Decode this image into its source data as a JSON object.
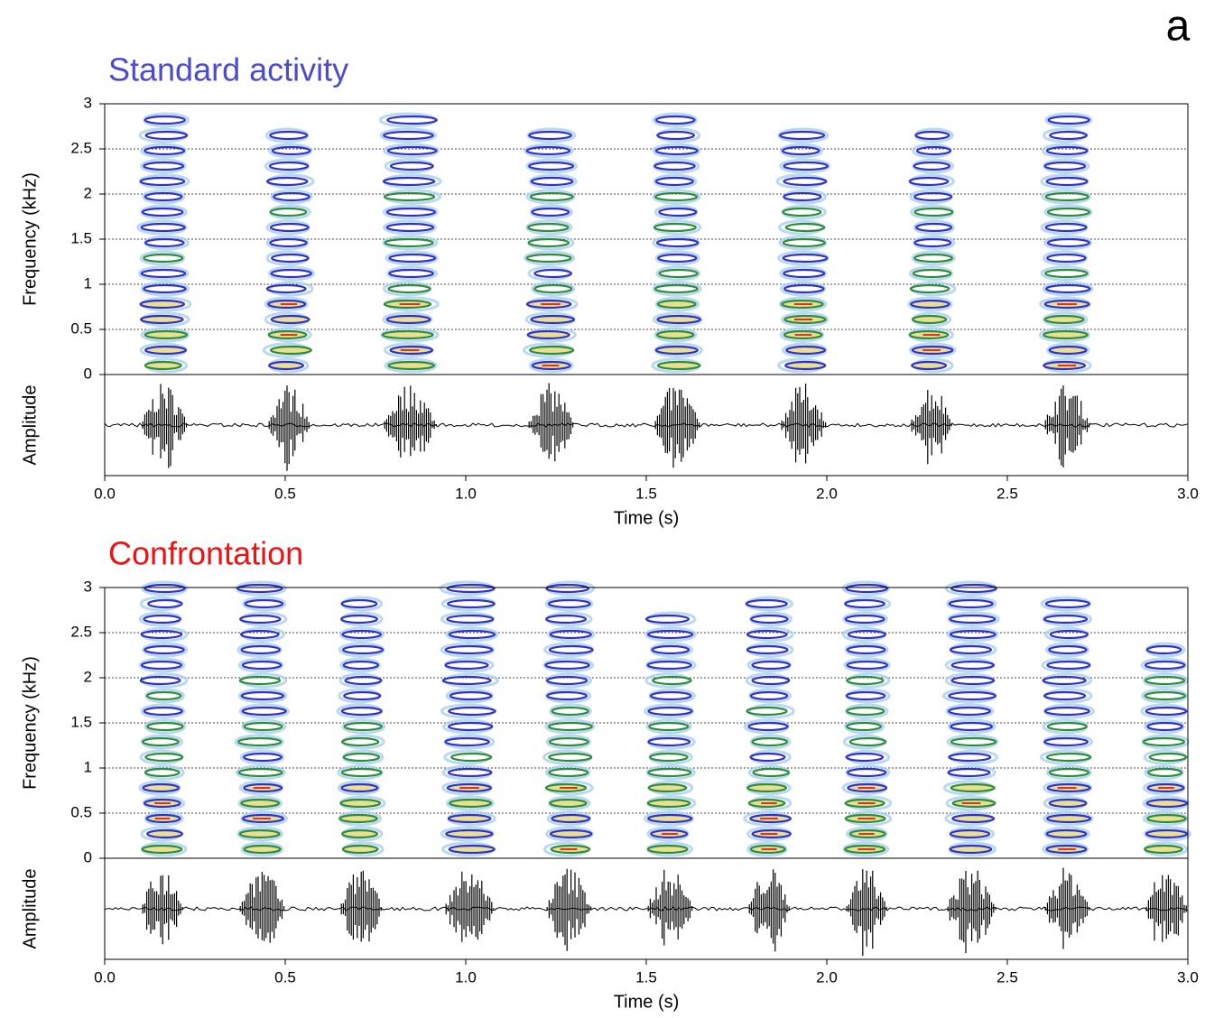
{
  "panel_label": "a",
  "chart_data": [
    {
      "type": "spectrogram",
      "title": "Standard activity",
      "title_color": "#4b4bd0",
      "xlabel": "Time (s)",
      "ylabel": "Frequency (kHz)",
      "amplitude_label": "Amplitude",
      "xlim": [
        0,
        3
      ],
      "xticks": [
        {
          "value": 0,
          "label": "0.0"
        },
        0.5,
        {
          "value": 1,
          "label": "1.0"
        },
        1.5,
        {
          "value": 2,
          "label": "2.0"
        },
        2.5,
        {
          "value": 3,
          "label": "3.0"
        }
      ],
      "ylim": [
        0,
        3
      ],
      "yticks": [
        0,
        0.5,
        1,
        1.5,
        2,
        2.5,
        3
      ],
      "grid": true,
      "onsets": [
        0.1,
        0.45,
        0.77,
        1.17,
        1.52,
        1.87,
        2.23,
        2.6
      ],
      "offsets": [
        0.23,
        0.57,
        0.92,
        1.3,
        1.65,
        2.0,
        2.35,
        2.73
      ],
      "max_freq": [
        2.85,
        2.75,
        2.85,
        2.75,
        2.85,
        2.75,
        2.8,
        2.85
      ]
    },
    {
      "type": "spectrogram",
      "title": "Confrontation",
      "title_color": "#ee1111",
      "xlabel": "Time (s)",
      "ylabel": "Frequency (kHz)",
      "amplitude_label": "Amplitude",
      "xlim": [
        0,
        3
      ],
      "xticks": [
        {
          "value": 0,
          "label": "0.0"
        },
        0.5,
        {
          "value": 1,
          "label": "1.0"
        },
        1.5,
        {
          "value": 2,
          "label": "2.0"
        },
        2.5,
        {
          "value": 3,
          "label": "3.0"
        }
      ],
      "ylim": [
        0,
        3
      ],
      "yticks": [
        0,
        0.5,
        1,
        1.5,
        2,
        2.5,
        3
      ],
      "grid": true,
      "onsets": [
        0.1,
        0.37,
        0.65,
        0.94,
        1.22,
        1.5,
        1.78,
        2.05,
        2.33,
        2.6,
        2.88
      ],
      "offsets": [
        0.22,
        0.5,
        0.77,
        1.08,
        1.35,
        1.63,
        1.9,
        2.17,
        2.47,
        2.73,
        3.0
      ],
      "max_freq": [
        3,
        3,
        2.9,
        3,
        3,
        2.7,
        2.9,
        3,
        3,
        2.95,
        2.4
      ]
    }
  ]
}
